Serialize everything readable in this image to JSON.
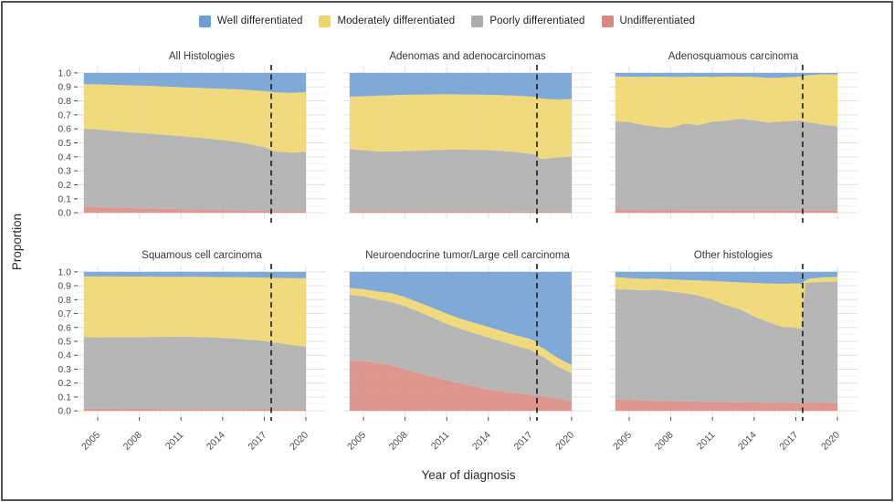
{
  "legend": [
    {
      "key": "well",
      "label": "Well differentiated",
      "color": "#6D9DD1"
    },
    {
      "key": "moderately",
      "label": "Moderately differentiated",
      "color": "#EFD46C"
    },
    {
      "key": "poorly",
      "label": "Poorly differentiated",
      "color": "#ACACAC"
    },
    {
      "key": "undifferentiated",
      "label": "Undifferentiated",
      "color": "#D9877F"
    }
  ],
  "chart_data": {
    "type": "area",
    "stacked": true,
    "note": "Six-panel stacked proportion area chart. Values are cumulative stack tops read off the y axis: undifferentiated_top, poorly_top, moderately_top; the Well differentiated band fills from moderately_top up to 1.0. Shared x years below; extra points 2017.4/2017.7 capture steps at the dashed reference line.",
    "xlabel": "Year of diagnosis",
    "ylabel": "Proportion",
    "x": [
      2004,
      2005,
      2006,
      2007,
      2008,
      2009,
      2010,
      2011,
      2012,
      2013,
      2014,
      2015,
      2016,
      2017,
      2017.4,
      2017.7,
      2018,
      2019,
      2020
    ],
    "x_ticks": [
      2005,
      2008,
      2011,
      2014,
      2017,
      2020
    ],
    "x_minor_ticks": [
      2006.5,
      2009.5,
      2012.5,
      2015.5,
      2018.5
    ],
    "ylim": [
      0,
      1
    ],
    "y_ticks": [
      "0.0",
      "0.1",
      "0.2",
      "0.3",
      "0.4",
      "0.5",
      "0.6",
      "0.7",
      "0.8",
      "0.9",
      "1.0"
    ],
    "dashed_vline_x": 2017.5,
    "grid": true,
    "legend_position": "top",
    "panels": [
      {
        "title": "All Histologies",
        "undifferentiated_top": [
          0.045,
          0.042,
          0.038,
          0.035,
          0.032,
          0.03,
          0.028,
          0.026,
          0.024,
          0.022,
          0.02,
          0.018,
          0.016,
          0.014,
          0.013,
          0.013,
          0.012,
          0.011,
          0.01
        ],
        "poorly_top": [
          0.6,
          0.595,
          0.586,
          0.578,
          0.571,
          0.564,
          0.556,
          0.548,
          0.539,
          0.53,
          0.52,
          0.507,
          0.49,
          0.468,
          0.452,
          0.44,
          0.436,
          0.43,
          0.436
        ],
        "moderately_top": [
          0.92,
          0.918,
          0.915,
          0.912,
          0.909,
          0.906,
          0.902,
          0.898,
          0.894,
          0.89,
          0.887,
          0.883,
          0.877,
          0.871,
          0.866,
          0.861,
          0.86,
          0.857,
          0.862
        ]
      },
      {
        "title": "Adenomas and adenocarcinomas",
        "undifferentiated_top": [
          0.013,
          0.012,
          0.012,
          0.011,
          0.011,
          0.01,
          0.01,
          0.01,
          0.01,
          0.01,
          0.01,
          0.01,
          0.009,
          0.009,
          0.009,
          0.008,
          0.008,
          0.008,
          0.008
        ],
        "poorly_top": [
          0.455,
          0.447,
          0.44,
          0.438,
          0.441,
          0.444,
          0.448,
          0.451,
          0.452,
          0.45,
          0.447,
          0.442,
          0.434,
          0.423,
          0.415,
          0.39,
          0.385,
          0.396,
          0.402
        ],
        "moderately_top": [
          0.83,
          0.833,
          0.837,
          0.84,
          0.843,
          0.845,
          0.846,
          0.847,
          0.846,
          0.845,
          0.843,
          0.84,
          0.837,
          0.832,
          0.828,
          0.818,
          0.815,
          0.81,
          0.813
        ]
      },
      {
        "title": "Adenosquamous carcinoma",
        "undifferentiated_top": [
          0.022,
          0.021,
          0.02,
          0.02,
          0.02,
          0.019,
          0.019,
          0.019,
          0.019,
          0.018,
          0.018,
          0.018,
          0.018,
          0.018,
          0.018,
          0.018,
          0.018,
          0.018,
          0.018
        ],
        "poorly_top": [
          0.655,
          0.648,
          0.628,
          0.615,
          0.608,
          0.638,
          0.628,
          0.652,
          0.658,
          0.672,
          0.662,
          0.645,
          0.652,
          0.658,
          0.66,
          0.652,
          0.645,
          0.63,
          0.618
        ],
        "moderately_top": [
          0.975,
          0.973,
          0.971,
          0.974,
          0.972,
          0.971,
          0.973,
          0.971,
          0.974,
          0.973,
          0.971,
          0.964,
          0.967,
          0.971,
          0.974,
          0.98,
          0.984,
          0.99,
          0.988
        ]
      },
      {
        "title": "Squamous cell carcinoma",
        "undifferentiated_top": [
          0.016,
          0.015,
          0.015,
          0.014,
          0.014,
          0.014,
          0.013,
          0.013,
          0.013,
          0.012,
          0.012,
          0.012,
          0.011,
          0.011,
          0.011,
          0.011,
          0.01,
          0.01,
          0.01
        ],
        "poorly_top": [
          0.53,
          0.528,
          0.53,
          0.531,
          0.53,
          0.532,
          0.533,
          0.535,
          0.532,
          0.529,
          0.525,
          0.519,
          0.512,
          0.503,
          0.497,
          0.492,
          0.488,
          0.473,
          0.462
        ],
        "moderately_top": [
          0.968,
          0.967,
          0.967,
          0.966,
          0.966,
          0.965,
          0.965,
          0.964,
          0.964,
          0.963,
          0.962,
          0.961,
          0.96,
          0.959,
          0.958,
          0.957,
          0.957,
          0.956,
          0.955
        ]
      },
      {
        "title": "Neuroendocrine tumor/Large cell carcinoma",
        "undifferentiated_top": [
          0.36,
          0.358,
          0.345,
          0.328,
          0.3,
          0.27,
          0.245,
          0.22,
          0.198,
          0.175,
          0.155,
          0.14,
          0.128,
          0.117,
          0.112,
          0.108,
          0.103,
          0.088,
          0.068
        ],
        "poorly_top": [
          0.835,
          0.825,
          0.8,
          0.783,
          0.753,
          0.713,
          0.67,
          0.625,
          0.59,
          0.558,
          0.528,
          0.498,
          0.468,
          0.44,
          0.42,
          0.4,
          0.385,
          0.318,
          0.272
        ],
        "moderately_top": [
          0.885,
          0.875,
          0.86,
          0.848,
          0.818,
          0.78,
          0.74,
          0.7,
          0.663,
          0.633,
          0.603,
          0.573,
          0.543,
          0.518,
          0.5,
          0.462,
          0.448,
          0.38,
          0.33
        ]
      },
      {
        "title": "Other histologies",
        "undifferentiated_top": [
          0.085,
          0.08,
          0.076,
          0.072,
          0.07,
          0.068,
          0.066,
          0.065,
          0.063,
          0.062,
          0.06,
          0.058,
          0.057,
          0.056,
          0.056,
          0.057,
          0.058,
          0.06,
          0.053
        ],
        "poorly_top": [
          0.875,
          0.872,
          0.868,
          0.871,
          0.858,
          0.846,
          0.83,
          0.8,
          0.76,
          0.73,
          0.68,
          0.64,
          0.605,
          0.597,
          0.59,
          0.92,
          0.923,
          0.928,
          0.93
        ],
        "moderately_top": [
          0.962,
          0.956,
          0.95,
          0.952,
          0.946,
          0.942,
          0.938,
          0.934,
          0.928,
          0.924,
          0.92,
          0.916,
          0.914,
          0.916,
          0.915,
          0.938,
          0.952,
          0.96,
          0.965
        ]
      }
    ]
  },
  "style": {
    "grid_major_color": "#e2e2e2",
    "grid_minor_color": "#f1f1f1",
    "vline_color": "#1c1c1c",
    "title_color": "#383838",
    "tick_color": "#4a4a4a",
    "axis_title_color": "#2b2b2b",
    "area_opacity": "0.88"
  }
}
